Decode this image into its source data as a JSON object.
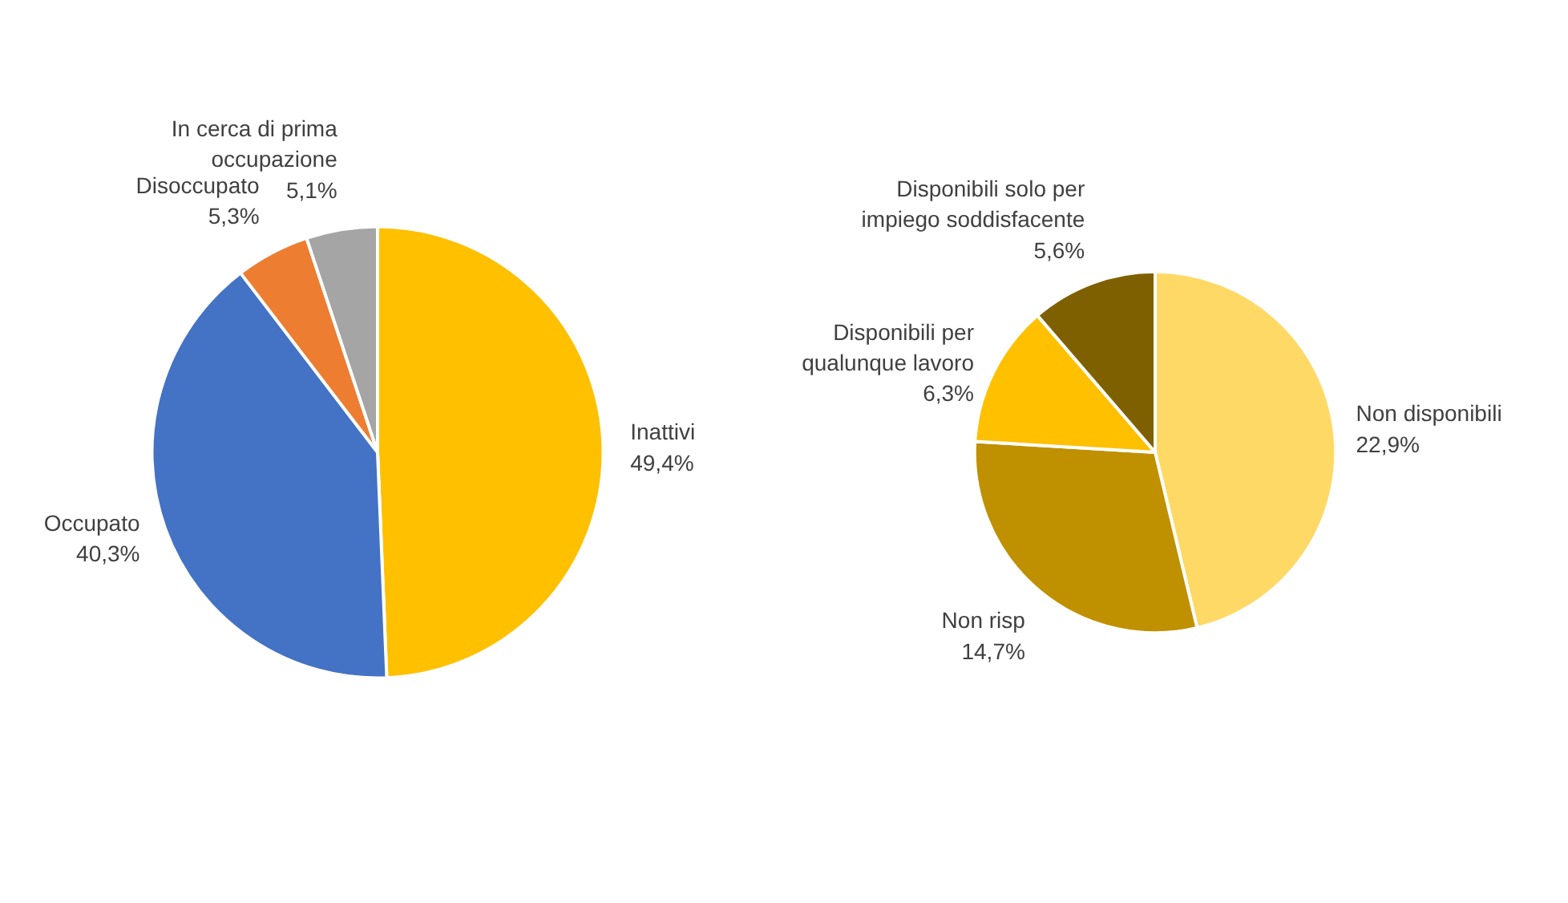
{
  "chart_data": [
    {
      "type": "pie",
      "categories": [
        "Inattivi",
        "Occupato",
        "Disoccupato",
        "In cerca di prima occupazione"
      ],
      "values": [
        49.4,
        40.3,
        5.3,
        5.1
      ],
      "colors": [
        "#ffc000",
        "#4472c4",
        "#ed7d31",
        "#a5a5a5"
      ],
      "value_labels": [
        "49,4%",
        "40,3%",
        "5,3%",
        "5,1%"
      ]
    },
    {
      "type": "pie",
      "categories": [
        "Non disponibili",
        "Non risp",
        "Disponibili per qualunque lavoro",
        "Disponibili solo per impiego soddisfacente"
      ],
      "values": [
        22.9,
        14.7,
        6.3,
        5.6
      ],
      "colors": [
        "#ffd966",
        "#bf9000",
        "#ffc000",
        "#7f6000"
      ],
      "value_labels": [
        "22,9%",
        "14,7%",
        "6,3%",
        "5,6%"
      ]
    }
  ]
}
